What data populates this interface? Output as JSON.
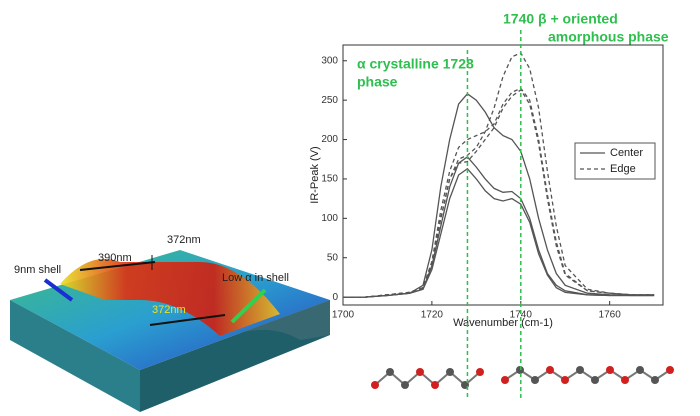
{
  "chart_data": {
    "type": "line",
    "xlabel": "Wavenumber (cm-1)",
    "ylabel": "IR-Peak (V)",
    "x": [
      1700,
      1705,
      1710,
      1715,
      1718,
      1720,
      1722,
      1724,
      1726,
      1728,
      1730,
      1732,
      1734,
      1736,
      1738,
      1740,
      1742,
      1744,
      1746,
      1748,
      1750,
      1755,
      1760,
      1765,
      1770
    ],
    "xlim": [
      1700,
      1772
    ],
    "ylim": [
      -10,
      320
    ],
    "xticks": [
      1700,
      1720,
      1740,
      1760
    ],
    "yticks": [
      0,
      50,
      100,
      150,
      200,
      250,
      300
    ],
    "legend": "upper right",
    "series": [
      {
        "name": "Center",
        "color": "#555555",
        "dash": "solid",
        "curves": [
          [
            0,
            0,
            2,
            5,
            15,
            60,
            140,
            200,
            245,
            258,
            250,
            235,
            215,
            205,
            200,
            185,
            150,
            100,
            60,
            30,
            15,
            5,
            3,
            2,
            2
          ],
          [
            0,
            0,
            2,
            5,
            10,
            40,
            90,
            140,
            170,
            178,
            165,
            150,
            138,
            133,
            134,
            125,
            100,
            60,
            30,
            15,
            8,
            3,
            2,
            2,
            2
          ],
          [
            0,
            0,
            2,
            5,
            10,
            35,
            80,
            125,
            155,
            163,
            150,
            135,
            125,
            122,
            125,
            118,
            95,
            55,
            28,
            12,
            6,
            3,
            2,
            2,
            2
          ]
        ]
      },
      {
        "name": "Edge",
        "color": "#555555",
        "dash": "dashed",
        "curves": [
          [
            0,
            0,
            3,
            6,
            12,
            40,
            100,
            150,
            175,
            180,
            190,
            210,
            240,
            280,
            305,
            310,
            290,
            240,
            160,
            90,
            40,
            10,
            5,
            3,
            3
          ],
          [
            0,
            0,
            3,
            6,
            12,
            45,
            110,
            160,
            190,
            200,
            205,
            210,
            220,
            245,
            260,
            265,
            250,
            200,
            130,
            70,
            30,
            8,
            5,
            3,
            3
          ],
          [
            0,
            0,
            3,
            6,
            12,
            45,
            100,
            150,
            170,
            172,
            185,
            200,
            215,
            240,
            255,
            263,
            245,
            195,
            125,
            65,
            28,
            8,
            5,
            3,
            3
          ]
        ]
      }
    ],
    "annotations": [
      {
        "x": 1728,
        "color": "#2fbf4f",
        "text": [
          "α crystalline 1728",
          "phase"
        ]
      },
      {
        "x": 1740,
        "color": "#2fbf4f",
        "text": [
          "1740 β + oriented",
          "amorphous phase"
        ]
      }
    ]
  },
  "image_labels": [
    "9nm shell",
    "390nm",
    "372nm",
    "372nm",
    "Low α in shell"
  ]
}
